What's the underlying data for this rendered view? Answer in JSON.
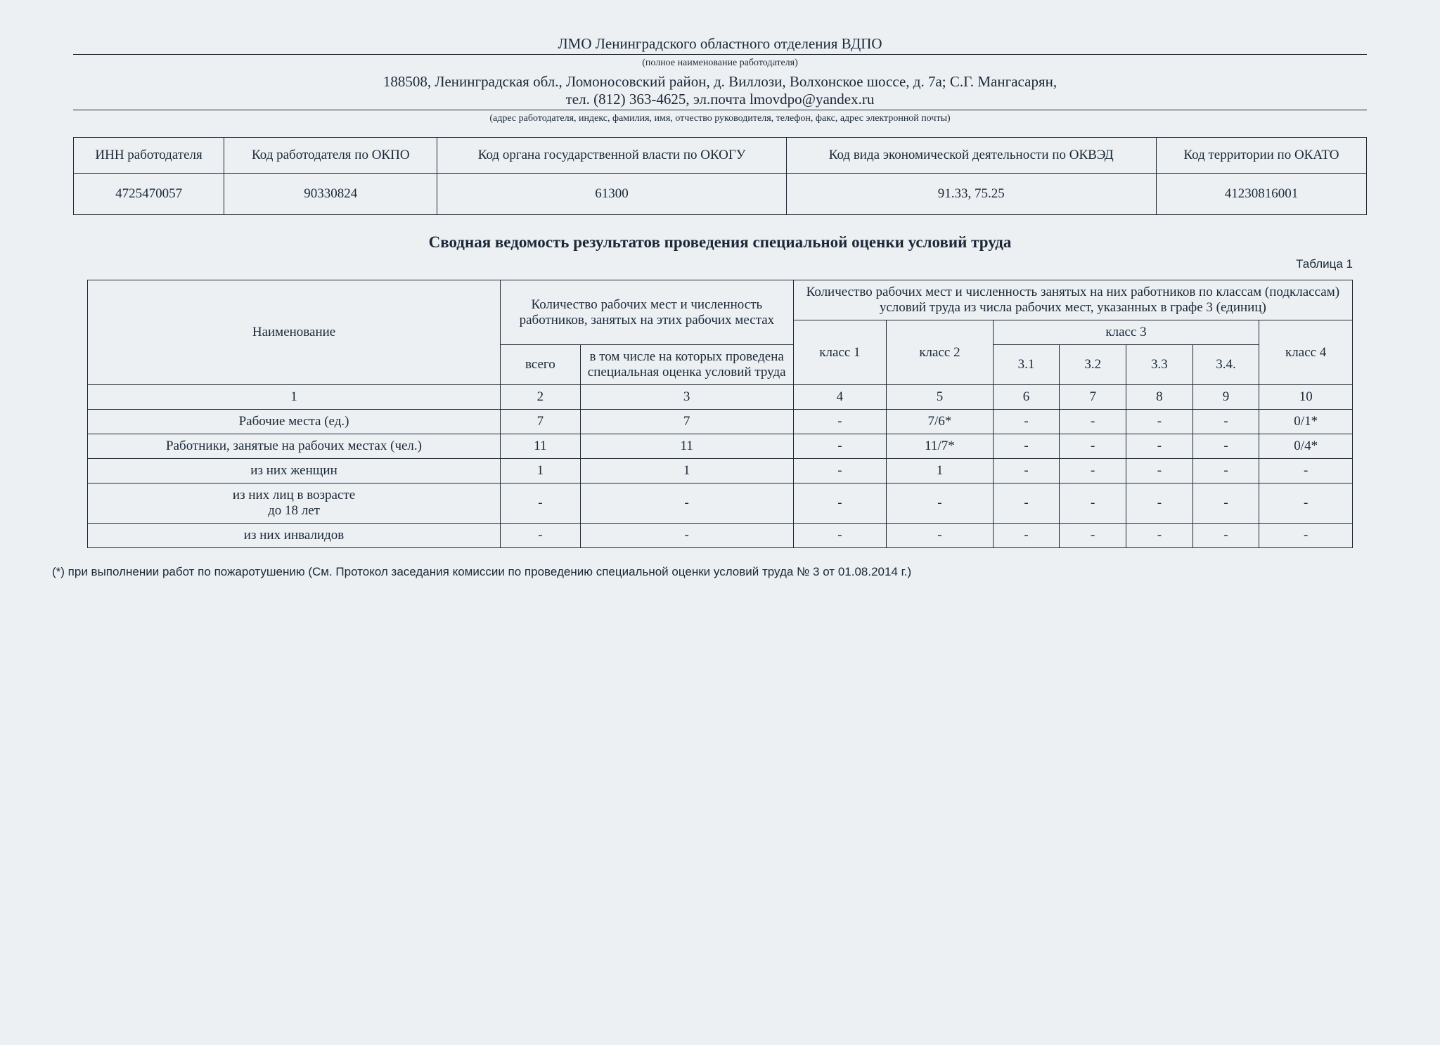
{
  "header": {
    "org_name": "ЛМО Ленинградского областного отделения ВДПО",
    "caption_org": "(полное наименование работодателя)",
    "address_line": "188508, Ленинградская обл., Ломоносовский район, д. Виллози, Волхонское шоссе, д. 7а; С.Г. Мангасарян,\nтел. (812) 363-4625, эл.почта lmovdpo@yandex.ru",
    "caption_addr": "(адрес работодателя, индекс, фамилия, имя, отчество руководителя, телефон, факс, адрес электронной почты)"
  },
  "codes_table": {
    "headers": {
      "inn": "ИНН работодателя",
      "okpo": "Код  работодателя по ОКПО",
      "okogu": "Код органа государственной власти по ОКОГУ",
      "okved": "Код вида экономической деятельности по ОКВЭД",
      "okato": "Код территории по ОКАТО"
    },
    "values": {
      "inn": "4725470057",
      "okpo": "90330824",
      "okogu": "61300",
      "okved": "91.33, 75.25",
      "okato": "41230816001"
    }
  },
  "main_title": "Сводная ведомость результатов проведения специальной оценки условий труда",
  "table_label": "Таблица 1",
  "main_table": {
    "head": {
      "name": "Наименование",
      "count_block": "Количество рабочих мест и численность работников, занятых на этих рабочих местах",
      "class_block": "Количество рабочих мест и численность занятых на них работников по классам (подклассам) условий труда из числа рабочих мест, указанных в графе 3 (единиц)",
      "vsego": "всего",
      "assessed": "в том числе на которых проведена специальная оценка условий труда",
      "k1": "класс 1",
      "k2": "класс 2",
      "k3": "класс 3",
      "k31": "3.1",
      "k32": "3.2",
      "k33": "3.3",
      "k34": "3.4.",
      "k4": "класс 4"
    },
    "col_nums": {
      "c1": "1",
      "c2": "2",
      "c3": "3",
      "c4": "4",
      "c5": "5",
      "c6": "6",
      "c7": "7",
      "c8": "8",
      "c9": "9",
      "c10": "10"
    },
    "rows": [
      {
        "name": "Рабочие места (ед.)",
        "c2": "7",
        "c3": "7",
        "c4": "-",
        "c5": "7/6*",
        "c6": "-",
        "c7": "-",
        "c8": "-",
        "c9": "-",
        "c10": "0/1*"
      },
      {
        "name": "Работники, занятые на рабочих местах (чел.)",
        "c2": "11",
        "c3": "11",
        "c4": "-",
        "c5": "11/7*",
        "c6": "-",
        "c7": "-",
        "c8": "-",
        "c9": "-",
        "c10": "0/4*"
      },
      {
        "name": "из них женщин",
        "c2": "1",
        "c3": "1",
        "c4": "-",
        "c5": "1",
        "c6": "-",
        "c7": "-",
        "c8": "-",
        "c9": "-",
        "c10": "-"
      },
      {
        "name": "из них лиц в возрасте\nдо 18 лет",
        "c2": "-",
        "c3": "-",
        "c4": "-",
        "c5": "-",
        "c6": "-",
        "c7": "-",
        "c8": "-",
        "c9": "-",
        "c10": "-"
      },
      {
        "name": "из них инвалидов",
        "c2": "-",
        "c3": "-",
        "c4": "-",
        "c5": "-",
        "c6": "-",
        "c7": "-",
        "c8": "-",
        "c9": "-",
        "c10": "-"
      }
    ]
  },
  "footnote": "(*) при выполнении работ по пожаротушению  (См. Протокол заседания комиссии по проведению специальной оценки условий труда № 3 от 01.08.2014 г.)"
}
